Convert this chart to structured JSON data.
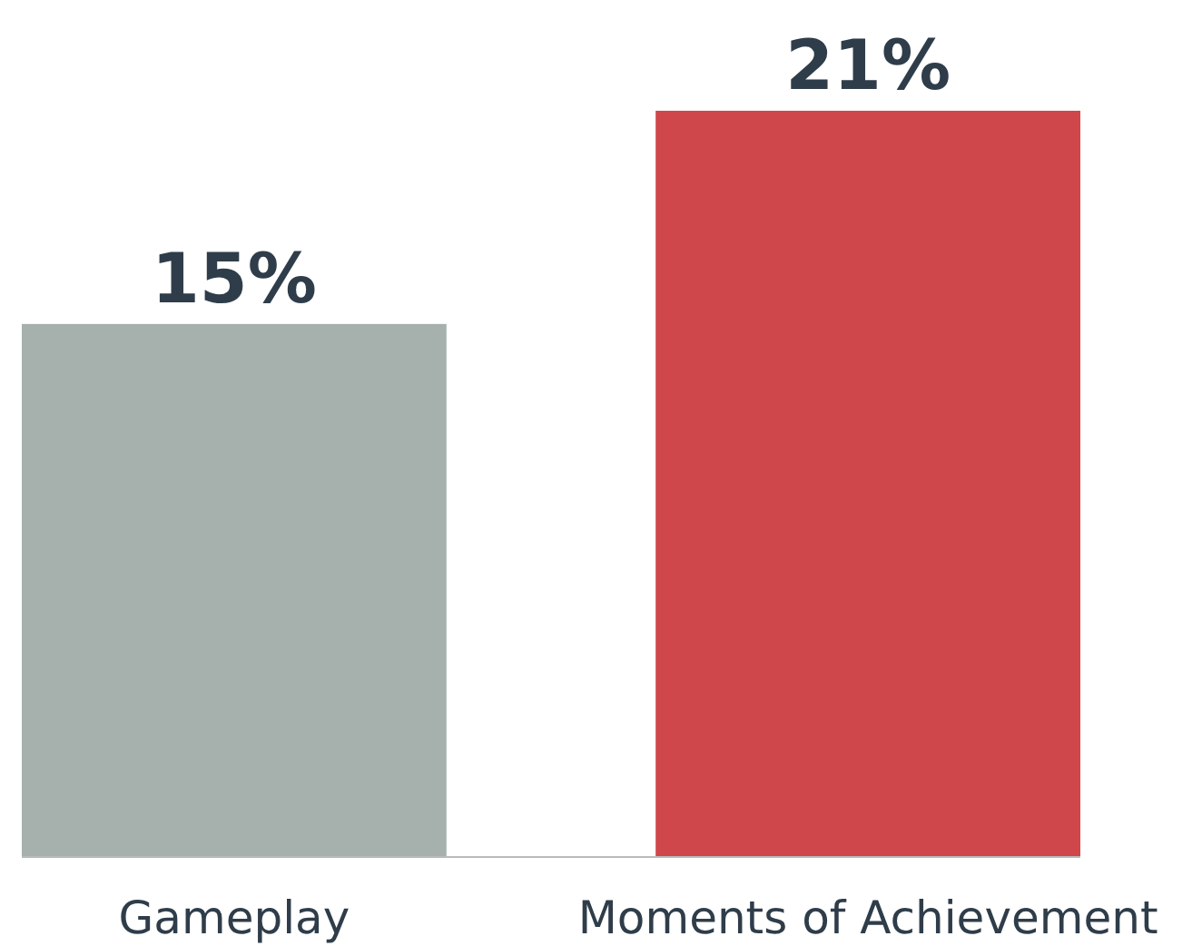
{
  "chart_data": {
    "type": "bar",
    "categories": [
      "Gameplay",
      "Moments of Achievement"
    ],
    "values": [
      15,
      21
    ],
    "colors": [
      "#a6b1ae",
      "#cf474b"
    ],
    "value_labels": [
      "15%",
      "21%"
    ]
  }
}
